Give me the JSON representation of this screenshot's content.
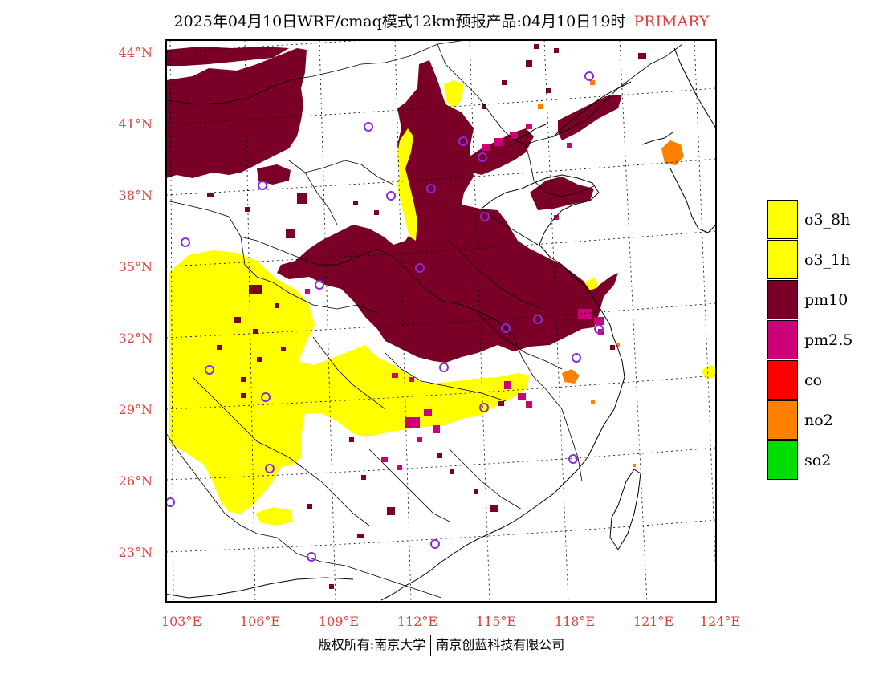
{
  "title": {
    "text": "2025年04月10日WRF/cmaq模式12km预报产品:04月10日19时",
    "tag": "PRIMARY"
  },
  "axes": {
    "lat_labels": [
      "44°N",
      "41°N",
      "38°N",
      "35°N",
      "32°N",
      "29°N",
      "26°N",
      "23°N"
    ],
    "lon_labels": [
      "103°E",
      "106°E",
      "109°E",
      "112°E",
      "115°E",
      "118°E",
      "121°E",
      "124°E"
    ]
  },
  "legend": [
    {
      "label": "o3_8h",
      "color": "#ffff00"
    },
    {
      "label": "o3_1h",
      "color": "#ffff00"
    },
    {
      "label": "pm10",
      "color": "#7a0028"
    },
    {
      "label": "pm2.5",
      "color": "#cc0077"
    },
    {
      "label": "co",
      "color": "#ff0000"
    },
    {
      "label": "no2",
      "color": "#ff7f00"
    },
    {
      "label": "so2",
      "color": "#00dd00"
    }
  ],
  "footer": {
    "left": "版权所有:南京大学",
    "right": "南京创蓝科技有限公司"
  },
  "colors": {
    "accent": "#e0403c",
    "pm10": "#7a0028",
    "pm25": "#cc0077",
    "o3": "#ffff00",
    "no2": "#ff7f00",
    "station": "#8a2be2"
  }
}
